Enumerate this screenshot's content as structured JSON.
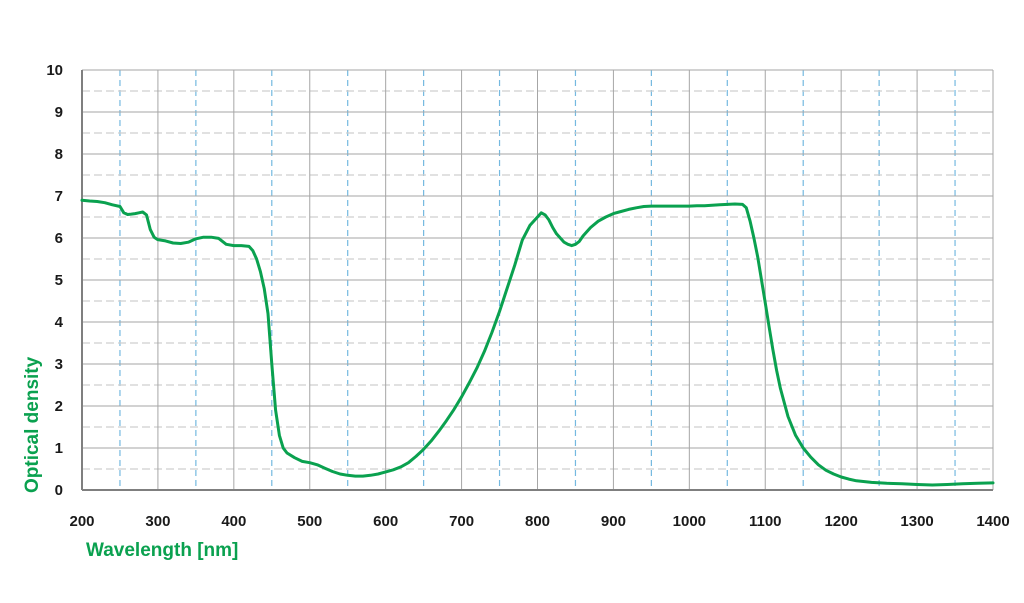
{
  "chart_data": {
    "type": "line",
    "title": "",
    "xlabel": "Wavelength [nm]",
    "ylabel": "Optical density",
    "xlim": [
      200,
      1400
    ],
    "ylim": [
      0,
      10
    ],
    "x_ticks": [
      200,
      300,
      400,
      500,
      600,
      700,
      800,
      900,
      1000,
      1100,
      1200,
      1300,
      1400
    ],
    "y_ticks": [
      0,
      1,
      2,
      3,
      4,
      5,
      6,
      7,
      8,
      9,
      10
    ],
    "x_tick_labels": [
      "200",
      "300",
      "400",
      "500",
      "600",
      "700",
      "800",
      "900",
      "1000",
      "1100",
      "1200",
      "1300",
      "1400"
    ],
    "y_tick_labels": [
      "0",
      "1",
      "2",
      "3",
      "4",
      "5",
      "6",
      "7",
      "8",
      "9",
      "10"
    ],
    "grid": true,
    "colors": {
      "line": "#0aa14f",
      "axis_title": "#0aa14f",
      "major_grid": "#a6a6a6",
      "minor_grid_y": "#cfcfcf",
      "minor_grid_x": "#74b9e0",
      "axis": "#7f7f7f"
    },
    "series": [
      {
        "x": [
          200,
          210,
          220,
          230,
          240,
          250,
          255,
          260,
          265,
          270,
          275,
          280,
          285,
          290,
          295,
          300,
          310,
          320,
          330,
          340,
          350,
          360,
          370,
          380,
          390,
          400,
          410,
          420,
          425,
          430,
          435,
          440,
          445,
          450,
          455,
          460,
          465,
          470,
          480,
          490,
          500,
          510,
          520,
          530,
          540,
          550,
          560,
          570,
          580,
          590,
          600,
          610,
          620,
          630,
          640,
          650,
          660,
          670,
          680,
          690,
          700,
          710,
          720,
          730,
          740,
          750,
          760,
          770,
          780,
          790,
          800,
          805,
          810,
          815,
          820,
          825,
          830,
          835,
          840,
          845,
          850,
          855,
          860,
          870,
          880,
          890,
          900,
          910,
          920,
          930,
          940,
          950,
          960,
          970,
          980,
          990,
          1000,
          1010,
          1020,
          1030,
          1040,
          1050,
          1060,
          1070,
          1075,
          1080,
          1085,
          1090,
          1095,
          1100,
          1105,
          1110,
          1115,
          1120,
          1130,
          1140,
          1150,
          1160,
          1170,
          1180,
          1190,
          1200,
          1210,
          1220,
          1240,
          1260,
          1280,
          1300,
          1320,
          1340,
          1360,
          1380,
          1400
        ],
        "y": [
          6.9,
          6.88,
          6.87,
          6.84,
          6.79,
          6.75,
          6.6,
          6.56,
          6.57,
          6.58,
          6.6,
          6.62,
          6.55,
          6.2,
          6.02,
          5.96,
          5.93,
          5.88,
          5.87,
          5.9,
          5.98,
          6.02,
          6.02,
          5.99,
          5.85,
          5.82,
          5.82,
          5.8,
          5.7,
          5.5,
          5.2,
          4.8,
          4.2,
          3.0,
          1.9,
          1.3,
          1.0,
          0.88,
          0.77,
          0.68,
          0.65,
          0.6,
          0.52,
          0.44,
          0.38,
          0.35,
          0.33,
          0.33,
          0.35,
          0.38,
          0.43,
          0.48,
          0.55,
          0.65,
          0.8,
          0.97,
          1.17,
          1.4,
          1.65,
          1.92,
          2.22,
          2.55,
          2.9,
          3.3,
          3.75,
          4.25,
          4.8,
          5.35,
          5.95,
          6.3,
          6.5,
          6.6,
          6.55,
          6.43,
          6.25,
          6.1,
          6.0,
          5.9,
          5.85,
          5.82,
          5.85,
          5.92,
          6.05,
          6.25,
          6.4,
          6.5,
          6.58,
          6.63,
          6.68,
          6.72,
          6.75,
          6.76,
          6.76,
          6.76,
          6.76,
          6.76,
          6.76,
          6.77,
          6.77,
          6.78,
          6.79,
          6.8,
          6.81,
          6.8,
          6.72,
          6.4,
          6.0,
          5.55,
          5.0,
          4.45,
          3.9,
          3.35,
          2.85,
          2.42,
          1.75,
          1.3,
          1.0,
          0.78,
          0.6,
          0.47,
          0.38,
          0.31,
          0.26,
          0.22,
          0.18,
          0.16,
          0.15,
          0.13,
          0.12,
          0.13,
          0.15,
          0.16,
          0.17
        ]
      }
    ]
  }
}
